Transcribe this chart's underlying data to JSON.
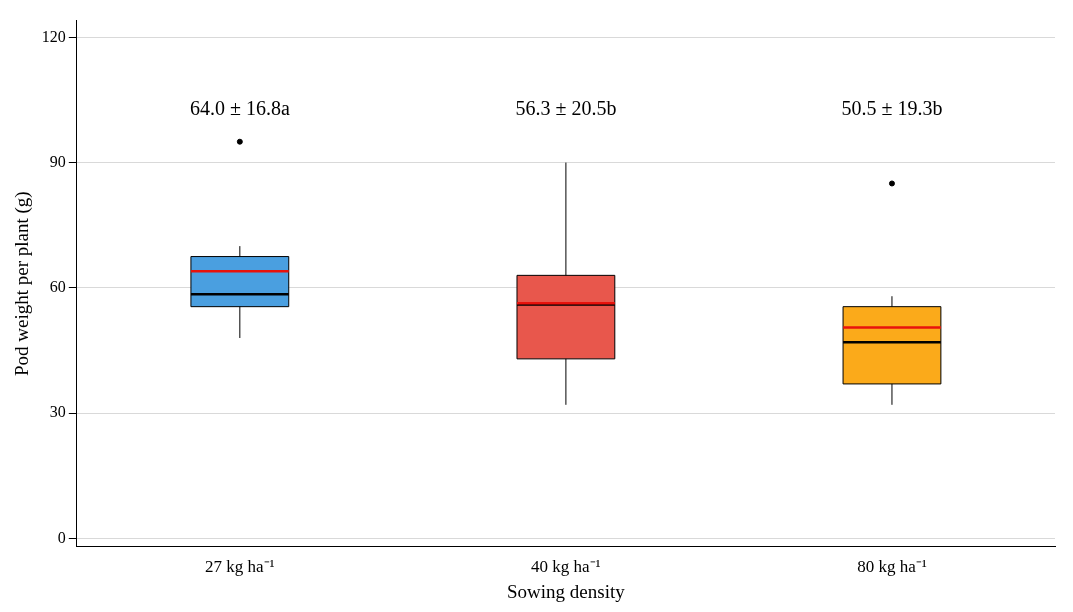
{
  "chart_data": {
    "type": "box",
    "xlabel": "Sowing density",
    "ylabel": "Pod weight per plant (g)",
    "categories": [
      "27 kg ha⁻¹",
      "40 kg ha⁻¹",
      "80 kg ha⁻¹"
    ],
    "colors": [
      "#4a9fe0",
      "#e8574c",
      "#fbaa1a"
    ],
    "boxes": [
      {
        "low": 48,
        "q1": 55.5,
        "median": 58.5,
        "q3": 67.5,
        "high": 70,
        "mean": 64.0,
        "outliers": [
          95
        ]
      },
      {
        "low": 32,
        "q1": 43,
        "median": 56,
        "q3": 63,
        "high": 90,
        "mean": 56.3
      },
      {
        "low": 32,
        "q1": 37,
        "median": 47,
        "q3": 55.5,
        "high": 58,
        "mean": 50.5,
        "outliers": [
          85
        ]
      }
    ],
    "annotations": [
      "64.0 ± 16.8a",
      "56.3 ± 20.5b",
      "50.5 ± 19.3b"
    ],
    "ylim": [
      -2,
      124
    ],
    "yticks": [
      0,
      30,
      60,
      90,
      120
    ],
    "grid": "y",
    "legend": false
  }
}
